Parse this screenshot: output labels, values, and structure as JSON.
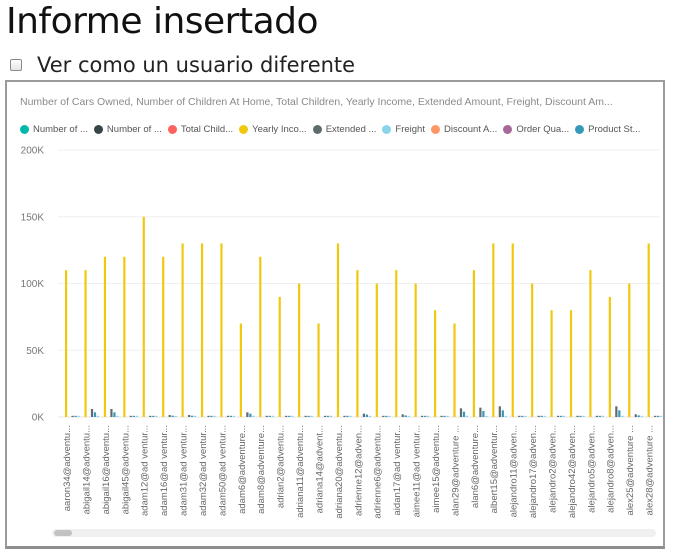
{
  "page": {
    "title": "Informe insertado",
    "checkbox_label": "Ver como un usuario diferente",
    "checkbox_checked": false
  },
  "chart_data": {
    "type": "bar",
    "title": "Number of Cars Owned, Number of Children At Home, Total Children, Yearly Income, Extended Amount, Freight, Discount Am...",
    "legend_position": "top-left",
    "grid": true,
    "ylim": [
      0,
      200000
    ],
    "yticks": [
      {
        "value": 200000,
        "label": "200K"
      },
      {
        "value": 150000,
        "label": "150K"
      },
      {
        "value": 100000,
        "label": "100K"
      },
      {
        "value": 50000,
        "label": "50K"
      },
      {
        "value": 0,
        "label": "0K"
      }
    ],
    "legend": [
      {
        "label": "Number of ...",
        "color": "#01B8AA"
      },
      {
        "label": "Number of ...",
        "color": "#374649"
      },
      {
        "label": "Total Child...",
        "color": "#FD625E"
      },
      {
        "label": "Yearly Inco...",
        "color": "#F2C80F"
      },
      {
        "label": "Extended ...",
        "color": "#5F6B6D"
      },
      {
        "label": "Freight",
        "color": "#8AD4EB"
      },
      {
        "label": "Discount A...",
        "color": "#FE9666"
      },
      {
        "label": "Order Qua...",
        "color": "#A66999"
      },
      {
        "label": "Product St...",
        "color": "#3599B8"
      }
    ],
    "categories": [
      "aaron34@adventu...",
      "abigail14@adventu...",
      "abigail16@adventu...",
      "abigail45@adventu...",
      "adam12@ad ventur...",
      "adam16@ad ventur...",
      "adam31@ad ventur...",
      "adam32@ad ventur...",
      "adam50@ad ventur...",
      "adam6@adventure...",
      "adam8@adventure...",
      "adrian2@adventu...",
      "adriana11@adventu...",
      "adriana14@advent...",
      "adriana20@adventu...",
      "adrienne12@adven...",
      "adrienne6@adventu...",
      "aidan17@ad ventur...",
      "aimee11@ad ventur...",
      "aimee15@adventu...",
      "alan29@adventure ...",
      "alan6@adventure...",
      "albert15@adventur...",
      "alejandro11@adven...",
      "alejandro17@adven...",
      "alejandro2@adven...",
      "alejandro42@adven...",
      "alejandro5@adven...",
      "alejandro8@adven...",
      "alex25@adventure ...",
      "alex28@adventure ..."
    ],
    "series": [
      {
        "name": "Yearly Income",
        "color": "#F2C80F",
        "values": [
          110000,
          110000,
          120000,
          120000,
          150000,
          120000,
          130000,
          130000,
          130000,
          70000,
          120000,
          90000,
          100000,
          70000,
          130000,
          110000,
          100000,
          110000,
          100000,
          80000,
          70000,
          110000,
          130000,
          130000,
          100000,
          80000,
          80000,
          110000,
          90000,
          100000,
          130000
        ]
      },
      {
        "name": "Extended Amount",
        "color": "#5F6B6D",
        "values": [
          500,
          6000,
          6000,
          500,
          800,
          1500,
          1500,
          500,
          500,
          3500,
          500,
          500,
          500,
          500,
          500,
          2500,
          500,
          2000,
          500,
          500,
          6500,
          7000,
          8000,
          500,
          500,
          500,
          500,
          500,
          8000,
          2000,
          800
        ]
      },
      {
        "name": "Product Standard Cost",
        "color": "#3599B8",
        "values": [
          300,
          3500,
          3500,
          300,
          500,
          1000,
          1000,
          300,
          300,
          2500,
          300,
          300,
          300,
          300,
          300,
          1800,
          300,
          1200,
          300,
          300,
          4000,
          4500,
          5000,
          300,
          300,
          300,
          300,
          300,
          5000,
          1200,
          500
        ]
      },
      {
        "name": "Freight",
        "color": "#8AD4EB",
        "values": [
          150,
          300,
          300,
          150,
          200,
          200,
          200,
          150,
          150,
          250,
          150,
          150,
          150,
          150,
          150,
          250,
          150,
          250,
          150,
          150,
          300,
          300,
          350,
          150,
          150,
          150,
          150,
          150,
          350,
          250,
          200
        ]
      }
    ]
  }
}
